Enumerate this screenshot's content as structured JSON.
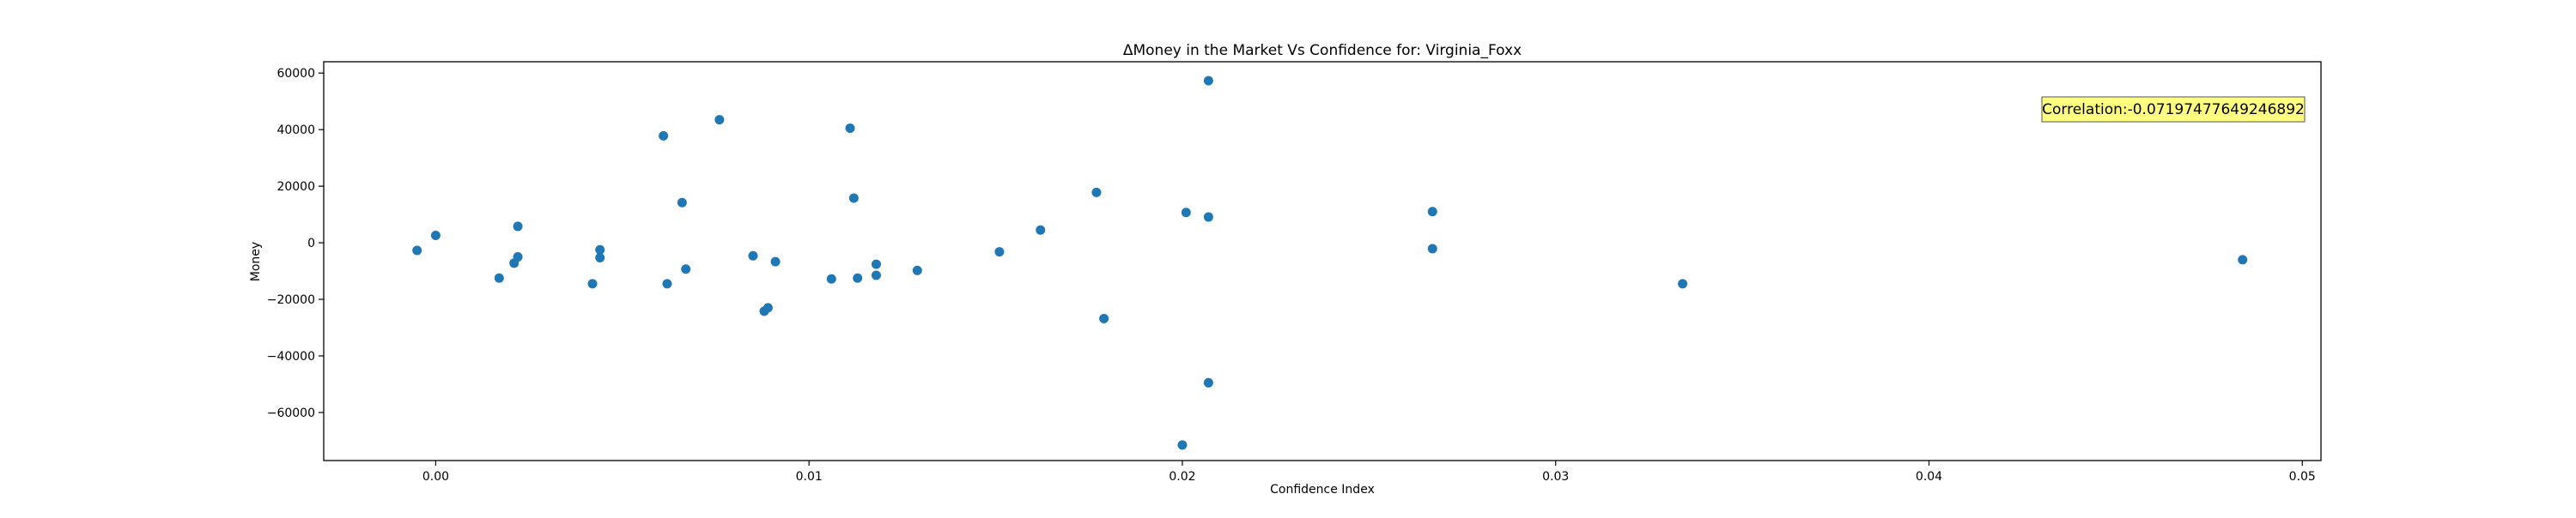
{
  "chart_data": {
    "type": "scatter",
    "title": "ΔMoney in the Market Vs Confidence for: Virginia_Foxx",
    "xlabel": "Confidence Index",
    "ylabel": "Money",
    "xlim": [
      -0.003,
      0.0505
    ],
    "ylim": [
      -77000,
      64000
    ],
    "x_ticks": [
      0.0,
      0.01,
      0.02,
      0.03,
      0.04,
      0.05
    ],
    "x_tick_labels": [
      "0.00",
      "0.01",
      "0.02",
      "0.03",
      "0.04",
      "0.05"
    ],
    "y_ticks": [
      60000,
      40000,
      20000,
      0,
      -20000,
      -40000,
      -60000
    ],
    "y_tick_labels": [
      "60000",
      "40000",
      "20000",
      "0",
      "−20000",
      "−40000",
      "−60000"
    ],
    "grid": false,
    "marker_color": "#1f77b4",
    "annotation": {
      "text": "Correlation:-0.07197477649246892",
      "background": "#ffff80"
    },
    "points": [
      {
        "x": -0.0005,
        "y": -2700
      },
      {
        "x": 0.0,
        "y": 2600
      },
      {
        "x": 0.0017,
        "y": -12500
      },
      {
        "x": 0.0021,
        "y": -7200
      },
      {
        "x": 0.0022,
        "y": -5000
      },
      {
        "x": 0.0022,
        "y": 5800
      },
      {
        "x": 0.0042,
        "y": -14500
      },
      {
        "x": 0.0044,
        "y": -2500
      },
      {
        "x": 0.0044,
        "y": -5300
      },
      {
        "x": 0.0061,
        "y": 37800
      },
      {
        "x": 0.0062,
        "y": -14500
      },
      {
        "x": 0.0066,
        "y": 14200
      },
      {
        "x": 0.0067,
        "y": -9300
      },
      {
        "x": 0.0076,
        "y": 43500
      },
      {
        "x": 0.0085,
        "y": -4600
      },
      {
        "x": 0.0088,
        "y": -24200
      },
      {
        "x": 0.0089,
        "y": -23000
      },
      {
        "x": 0.0091,
        "y": -6700
      },
      {
        "x": 0.0106,
        "y": -12800
      },
      {
        "x": 0.0111,
        "y": 40500
      },
      {
        "x": 0.0112,
        "y": 15800
      },
      {
        "x": 0.0113,
        "y": -12500
      },
      {
        "x": 0.0118,
        "y": -7600
      },
      {
        "x": 0.0118,
        "y": -11500
      },
      {
        "x": 0.0129,
        "y": -9800
      },
      {
        "x": 0.0151,
        "y": -3200
      },
      {
        "x": 0.0162,
        "y": 4500
      },
      {
        "x": 0.0177,
        "y": 17800
      },
      {
        "x": 0.0179,
        "y": -26800
      },
      {
        "x": 0.02,
        "y": -71500
      },
      {
        "x": 0.0201,
        "y": 10700
      },
      {
        "x": 0.0207,
        "y": 57300
      },
      {
        "x": 0.0207,
        "y": 9100
      },
      {
        "x": 0.0207,
        "y": -49500
      },
      {
        "x": 0.0267,
        "y": 11000
      },
      {
        "x": 0.0267,
        "y": -2100
      },
      {
        "x": 0.0334,
        "y": -14500
      },
      {
        "x": 0.0484,
        "y": -6000
      }
    ]
  }
}
